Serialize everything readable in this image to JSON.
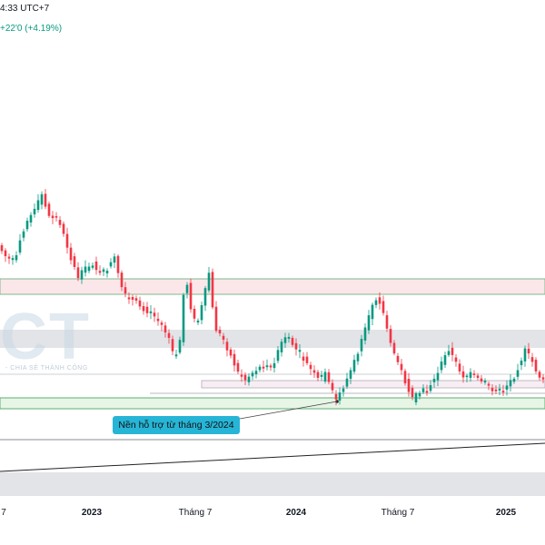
{
  "header": {
    "time_fragment": "4:33 UTC+7",
    "change_text": "+22'0 (+4.19%)"
  },
  "watermark": {
    "logo_text": "CT",
    "tagline": "- CHIA SẺ THÀNH CÔNG"
  },
  "annotation": {
    "text": "Nền hỗ trợ từ tháng 3/2024"
  },
  "colors": {
    "up": "#089981",
    "down": "#f23645",
    "resistance_fill": "#fbe7ea",
    "resistance_border": "#7cb98a",
    "support_fill": "#e6f5e6",
    "support_border": "#5fae73",
    "gray_band": "#e3e4e8",
    "callout_bg": "#26b5d6"
  },
  "chart_data": {
    "type": "candlestick",
    "title": "",
    "x_tick_labels": [
      {
        "label": "7",
        "bold": false
      },
      {
        "label": "2023",
        "bold": true
      },
      {
        "label": "Tháng 7",
        "bold": false
      },
      {
        "label": "2024",
        "bold": true
      },
      {
        "label": "Tháng 7",
        "bold": false
      },
      {
        "label": "2025",
        "bold": true
      }
    ],
    "grid": false,
    "legend": "none",
    "annotations": [
      "Nền hỗ trợ từ tháng 3/2024"
    ],
    "zones": [
      "resistance",
      "support"
    ]
  }
}
